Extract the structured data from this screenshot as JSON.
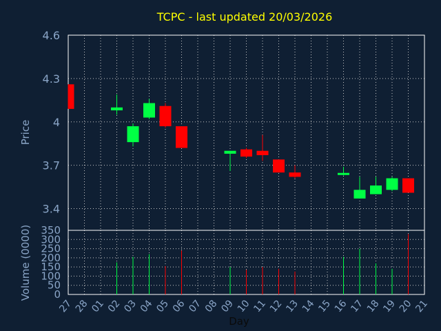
{
  "colors": {
    "background": "#0f1f33",
    "axis": "#ffffff",
    "grid": "#c8c8c8",
    "title": "#ffff00",
    "label": "#8aa5c7",
    "up": "#00ff44",
    "down": "#ff0000"
  },
  "chart_data": {
    "type": "candlestick",
    "title": "TCPC - last updated 20/03/2026",
    "xlabel": "Day",
    "grid": true,
    "x_ticks": [
      "27",
      "28",
      "01",
      "02",
      "03",
      "04",
      "05",
      "06",
      "07",
      "08",
      "09",
      "10",
      "11",
      "12",
      "13",
      "14",
      "15",
      "16",
      "17",
      "18",
      "19",
      "20",
      "21"
    ],
    "price_panel": {
      "ylabel": "Price",
      "ylim": [
        3.25,
        4.6
      ],
      "y_ticks": [
        "4.6",
        "4.3",
        "4",
        "3.7",
        "3.4"
      ],
      "y_tick_values": [
        4.6,
        4.3,
        4.0,
        3.7,
        3.4
      ]
    },
    "volume_panel": {
      "ylabel": "Volume (0000)",
      "ylim": [
        0,
        350
      ],
      "y_ticks": [
        "350",
        "300",
        "250",
        "200",
        "150",
        "100",
        "50",
        "0"
      ],
      "y_tick_values": [
        350,
        300,
        250,
        200,
        150,
        100,
        50,
        0
      ]
    },
    "candles": [
      {
        "day": "27",
        "open": 4.26,
        "high": 4.26,
        "low": 4.09,
        "close": 4.09,
        "volume": 0
      },
      {
        "day": "02",
        "open": 4.08,
        "high": 4.19,
        "low": 4.05,
        "close": 4.1,
        "volume": 175
      },
      {
        "day": "03",
        "open": 3.86,
        "high": 3.99,
        "low": 3.83,
        "close": 3.97,
        "volume": 205
      },
      {
        "day": "04",
        "open": 4.03,
        "high": 4.16,
        "low": 4.02,
        "close": 4.13,
        "volume": 220
      },
      {
        "day": "05",
        "open": 4.11,
        "high": 4.13,
        "low": 3.96,
        "close": 3.97,
        "volume": 155
      },
      {
        "day": "06",
        "open": 3.97,
        "high": 3.97,
        "low": 3.82,
        "close": 3.82,
        "volume": 240
      },
      {
        "day": "09",
        "open": 3.78,
        "high": 3.8,
        "low": 3.66,
        "close": 3.8,
        "volume": 150
      },
      {
        "day": "10",
        "open": 3.81,
        "high": 3.82,
        "low": 3.75,
        "close": 3.76,
        "volume": 135
      },
      {
        "day": "11",
        "open": 3.8,
        "high": 3.91,
        "low": 3.73,
        "close": 3.77,
        "volume": 150
      },
      {
        "day": "12",
        "open": 3.74,
        "high": 3.74,
        "low": 3.65,
        "close": 3.65,
        "volume": 140
      },
      {
        "day": "13",
        "open": 3.65,
        "high": 3.7,
        "low": 3.61,
        "close": 3.62,
        "volume": 125
      },
      {
        "day": "16",
        "open": 3.63,
        "high": 3.69,
        "low": 3.63,
        "close": 3.64,
        "volume": 205
      },
      {
        "day": "17",
        "open": 3.47,
        "high": 3.62,
        "low": 3.47,
        "close": 3.53,
        "volume": 250
      },
      {
        "day": "18",
        "open": 3.5,
        "high": 3.62,
        "low": 3.5,
        "close": 3.56,
        "volume": 170
      },
      {
        "day": "19",
        "open": 3.53,
        "high": 3.62,
        "low": 3.52,
        "close": 3.61,
        "volume": 140
      },
      {
        "day": "20",
        "open": 3.61,
        "high": 3.61,
        "low": 3.51,
        "close": 3.51,
        "volume": 330
      }
    ]
  }
}
